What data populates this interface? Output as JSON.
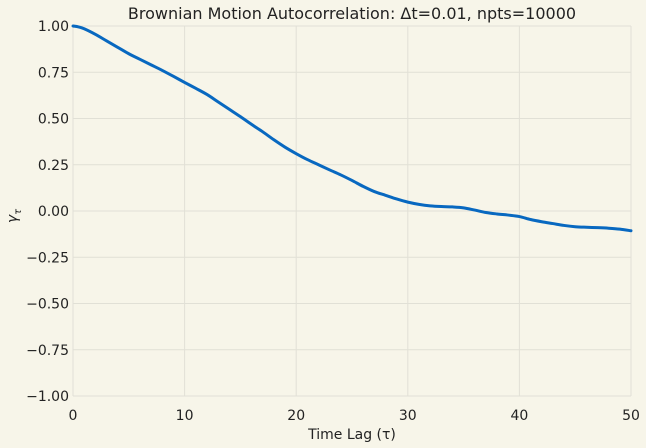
{
  "chart_data": {
    "type": "line",
    "title": "Brownian Motion Autocorrelation: Δt=0.01, npts=10000",
    "xlabel": "Time Lag (τ)",
    "ylabel_main": "γ",
    "ylabel_sub": "τ",
    "xlim": [
      0,
      50
    ],
    "ylim": [
      -1.0,
      1.0
    ],
    "x_ticks": [
      0,
      10,
      20,
      30,
      40,
      50
    ],
    "x_tick_labels": [
      "0",
      "10",
      "20",
      "30",
      "40",
      "50"
    ],
    "y_ticks": [
      1.0,
      0.75,
      0.5,
      0.25,
      0.0,
      -0.25,
      -0.5,
      -0.75,
      -1.0
    ],
    "y_tick_labels": [
      "1.00",
      "0.75",
      "0.50",
      "0.25",
      "0.00",
      "−0.25",
      "−0.50",
      "−0.75",
      "−1.00"
    ],
    "grid": true,
    "series": [
      {
        "name": "autocorrelation",
        "color": "#0868c0",
        "x": [
          0,
          0.5,
          1,
          2,
          3,
          4,
          5,
          6,
          7,
          8,
          9,
          10,
          11,
          12,
          13,
          14,
          15,
          16,
          17,
          18,
          19,
          20,
          21,
          22,
          23,
          24,
          25,
          26,
          27,
          28,
          29,
          30,
          31,
          32,
          33,
          34,
          35,
          36,
          37,
          38,
          39,
          40,
          41,
          42,
          43,
          44,
          45,
          46,
          47,
          48,
          49,
          50
        ],
        "y": [
          1.0,
          0.995,
          0.985,
          0.955,
          0.92,
          0.885,
          0.85,
          0.82,
          0.79,
          0.76,
          0.728,
          0.695,
          0.663,
          0.63,
          0.59,
          0.55,
          0.51,
          0.468,
          0.428,
          0.385,
          0.345,
          0.31,
          0.278,
          0.25,
          0.222,
          0.195,
          0.165,
          0.133,
          0.105,
          0.085,
          0.065,
          0.048,
          0.036,
          0.028,
          0.024,
          0.022,
          0.017,
          0.005,
          -0.008,
          -0.016,
          -0.022,
          -0.03,
          -0.046,
          -0.058,
          -0.068,
          -0.078,
          -0.085,
          -0.088,
          -0.09,
          -0.093,
          -0.098,
          -0.107
        ]
      }
    ]
  }
}
